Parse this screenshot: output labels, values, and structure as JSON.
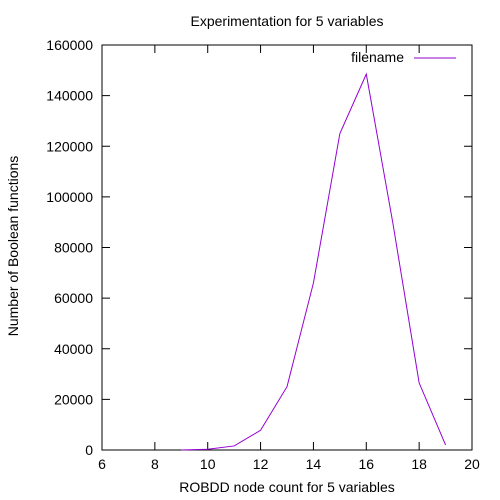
{
  "chart_data": {
    "type": "line",
    "title": "Experimentation for 5 variables",
    "xlabel": "ROBDD node count for 5 variables",
    "ylabel": "Number of Boolean functions",
    "xlim": [
      6,
      20
    ],
    "ylim": [
      0,
      160000
    ],
    "x_ticks": [
      6,
      8,
      10,
      12,
      14,
      16,
      18,
      20
    ],
    "y_ticks": [
      0,
      20000,
      40000,
      60000,
      80000,
      100000,
      120000,
      140000,
      160000
    ],
    "grid": false,
    "legend_position": "top-right",
    "series": [
      {
        "name": "filename",
        "color": "#9400d3",
        "points": [
          {
            "x": 9,
            "y": 0
          },
          {
            "x": 10,
            "y": 300
          },
          {
            "x": 11,
            "y": 1600
          },
          {
            "x": 12,
            "y": 7800
          },
          {
            "x": 13,
            "y": 25000
          },
          {
            "x": 14,
            "y": 66000
          },
          {
            "x": 15,
            "y": 125000
          },
          {
            "x": 16,
            "y": 148500
          },
          {
            "x": 17,
            "y": 90000
          },
          {
            "x": 18,
            "y": 26500
          },
          {
            "x": 19,
            "y": 2000
          }
        ]
      }
    ]
  }
}
